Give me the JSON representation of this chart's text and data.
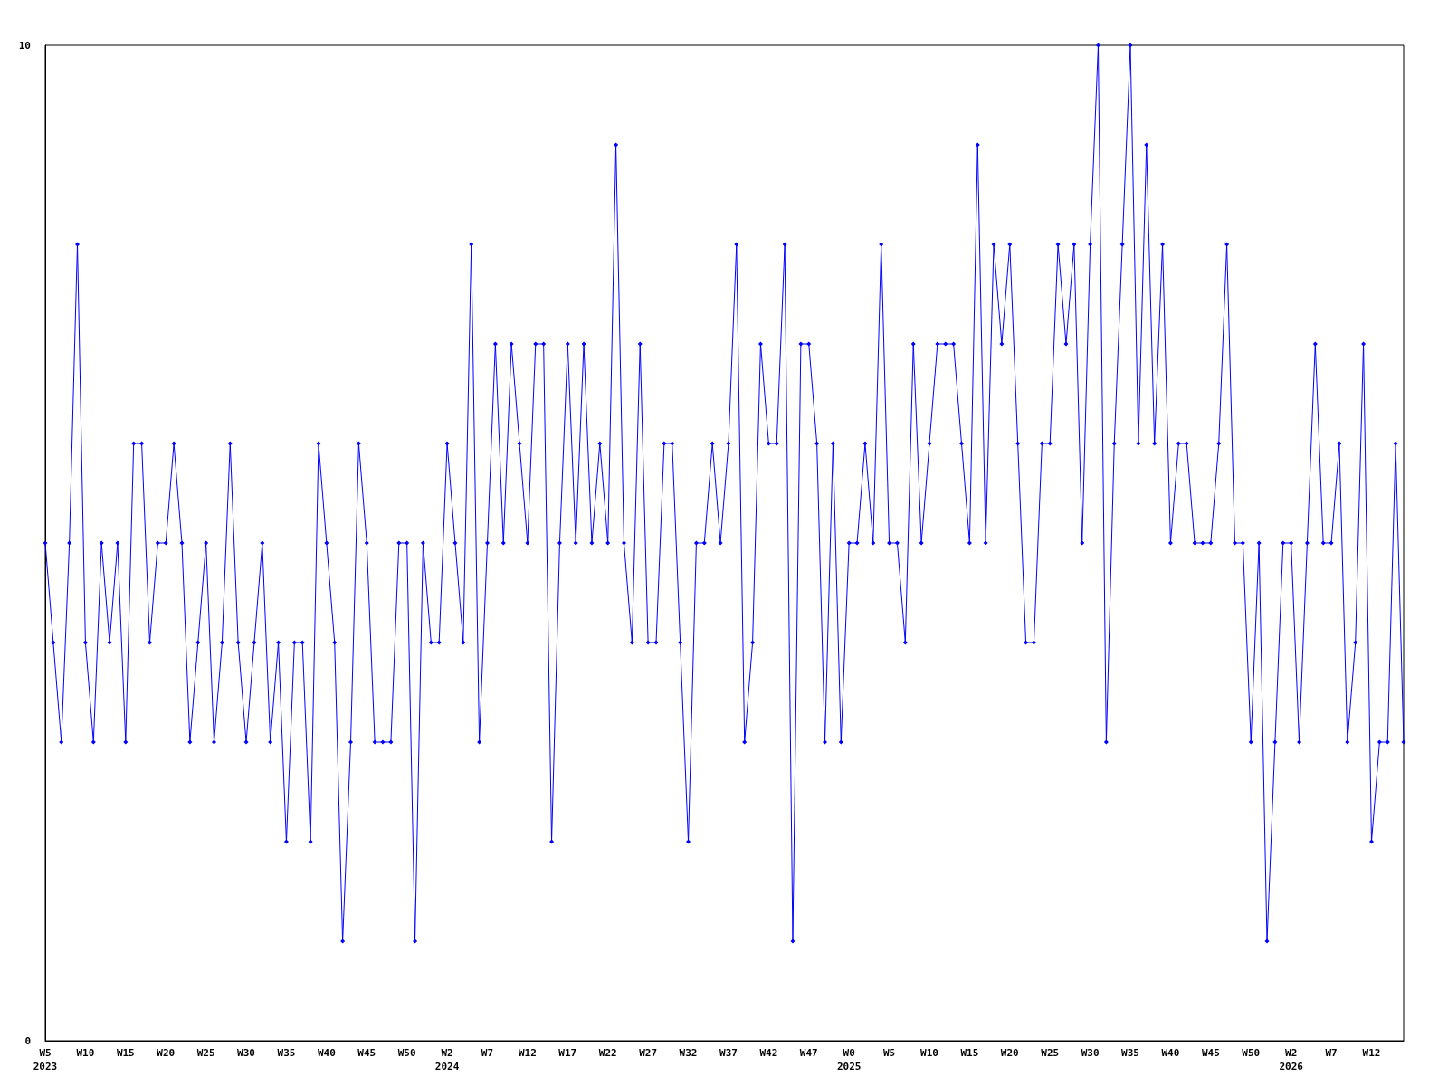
{
  "chart_data": {
    "type": "line",
    "categories": [
      "W5\n2023",
      null,
      null,
      null,
      null,
      "W10",
      null,
      null,
      null,
      null,
      "W15",
      null,
      null,
      null,
      null,
      "W20",
      null,
      null,
      null,
      null,
      "W25",
      null,
      null,
      null,
      null,
      "W30",
      null,
      null,
      null,
      null,
      "W35",
      null,
      null,
      null,
      null,
      "W40",
      null,
      null,
      null,
      null,
      "W45",
      null,
      null,
      null,
      null,
      "W50",
      null,
      null,
      null,
      null,
      "W2\n2024",
      null,
      null,
      null,
      null,
      "W7",
      null,
      null,
      null,
      null,
      "W12",
      null,
      null,
      null,
      null,
      "W17",
      null,
      null,
      null,
      null,
      "W22",
      null,
      null,
      null,
      null,
      "W27",
      null,
      null,
      null,
      null,
      "W32",
      null,
      null,
      null,
      null,
      "W37",
      null,
      null,
      null,
      null,
      "W42",
      null,
      null,
      null,
      null,
      "W47",
      null,
      null,
      null,
      null,
      "W0\n2025",
      null,
      null,
      null,
      null,
      "W5",
      null,
      null,
      null,
      null,
      "W10",
      null,
      null,
      null,
      null,
      "W15",
      null,
      null,
      null,
      null,
      "W20",
      null,
      null,
      null,
      null,
      "W25",
      null,
      null,
      null,
      null,
      "W30",
      null,
      null,
      null,
      null,
      "W35",
      null,
      null,
      null,
      null,
      "W40",
      null,
      null,
      null,
      null,
      "W45",
      null,
      null,
      null,
      null,
      "W50",
      null,
      null,
      null,
      null,
      "W2\n2026",
      null,
      null,
      null,
      null,
      "W7",
      null,
      null,
      null,
      null,
      "W12",
      null,
      null,
      null,
      null
    ],
    "series": [
      {
        "color": "#0000ff",
        "values": [
          5,
          4,
          3,
          5,
          8,
          4,
          3,
          5,
          4,
          5,
          3,
          6,
          6,
          4,
          5,
          5,
          6,
          5,
          3,
          4,
          5,
          3,
          4,
          6,
          4,
          3,
          4,
          5,
          3,
          4,
          2,
          4,
          4,
          2,
          6,
          5,
          4,
          1,
          3,
          6,
          5,
          3,
          3,
          3,
          5,
          5,
          1,
          5,
          4,
          4,
          6,
          5,
          4,
          8,
          3,
          5,
          7,
          5,
          7,
          6,
          5,
          7,
          7,
          2,
          5,
          7,
          5,
          7,
          5,
          6,
          5,
          9,
          5,
          4,
          7,
          4,
          4,
          6,
          6,
          4,
          2,
          5,
          5,
          6,
          5,
          6,
          8,
          3,
          4,
          7,
          6,
          6,
          8,
          1,
          7,
          7,
          6,
          3,
          6,
          3,
          5,
          5,
          6,
          5,
          8,
          5,
          5,
          4,
          7,
          5,
          6,
          7,
          7,
          7,
          6,
          5,
          9,
          5,
          8,
          7,
          8,
          6,
          4,
          4,
          6,
          6,
          8,
          7,
          8,
          5,
          8,
          10,
          3,
          6,
          8,
          10,
          6,
          9,
          6,
          8,
          5,
          6,
          6,
          5,
          5,
          5,
          6,
          8,
          5,
          5,
          3,
          5,
          1,
          3,
          5,
          5,
          3,
          5,
          7,
          5,
          5,
          6,
          3,
          4,
          7,
          2,
          3,
          3,
          6,
          3
        ]
      }
    ],
    "ylim": [
      0,
      10
    ],
    "yticks": [
      0,
      10
    ],
    "marker": "diamond",
    "line_style": "solid"
  }
}
